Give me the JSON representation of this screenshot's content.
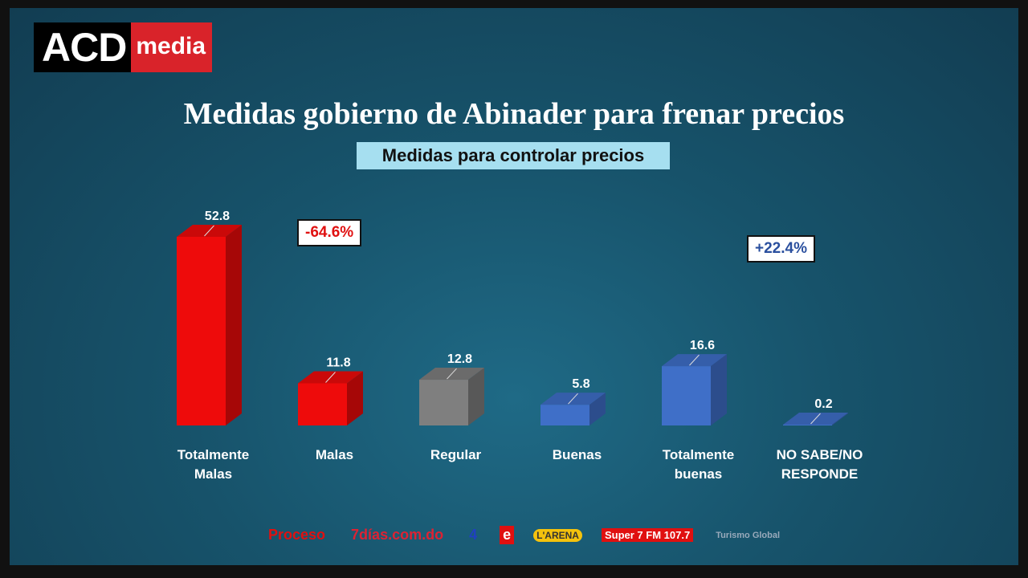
{
  "logo": {
    "part1": "ACD",
    "part2": "media"
  },
  "chart_data": {
    "type": "bar",
    "title": "Medidas gobierno de Abinader para frenar precios",
    "subtitle": "Medidas para controlar precios",
    "categories": [
      "Totalmente Malas",
      "Malas",
      "Regular",
      "Buenas",
      "Totalmente buenas",
      "NO SABE/NO RESPONDE"
    ],
    "values": [
      52.8,
      11.8,
      12.8,
      5.8,
      16.6,
      0.2
    ],
    "value_labels": [
      "52.8",
      "11.8",
      "12.8",
      "5.8",
      "16.6",
      "0.2"
    ],
    "colors": [
      "#ee0b0b",
      "#ee0b0b",
      "#7f7f7f",
      "#3f6fc8",
      "#3f6fc8",
      "#3f6fc8"
    ],
    "annotations": [
      "-64.6%",
      "+22.4%"
    ],
    "ylim": [
      0,
      55
    ]
  },
  "sponsors": [
    "Proceso",
    "7días.com.do",
    "4",
    "e",
    "L'ARENA",
    "Super 7 FM 107.7",
    "Turismo Global"
  ]
}
